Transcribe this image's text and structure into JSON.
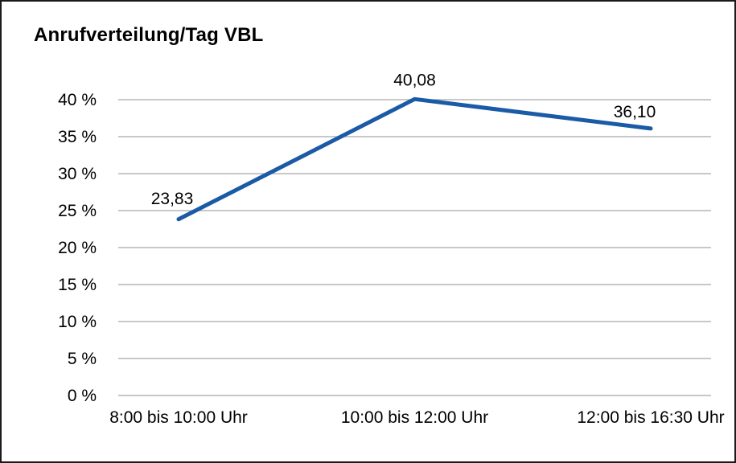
{
  "chart_data": {
    "type": "line",
    "title": "Anrufverteilung/Tag VBL",
    "categories": [
      "8:00 bis 10:00 Uhr",
      "10:00 bis 12:00 Uhr",
      "12:00 bis 16:30 Uhr"
    ],
    "values": [
      23.83,
      40.08,
      36.1
    ],
    "value_labels": [
      "23,83",
      "40,08",
      "36,10"
    ],
    "xlabel": "",
    "ylabel": "",
    "ylim": [
      0,
      40
    ],
    "ytick_step": 5,
    "ytick_labels": [
      "0 %",
      "5 %",
      "10 %",
      "15 %",
      "20 %",
      "25 %",
      "30 %",
      "35 %",
      "40 %"
    ],
    "grid": true,
    "legend": "none",
    "colors": {
      "line": "#1b5aa6",
      "grid": "#a6a6a6",
      "text": "#000000",
      "frame": "#1a1a1a",
      "background": "#ffffff"
    }
  }
}
